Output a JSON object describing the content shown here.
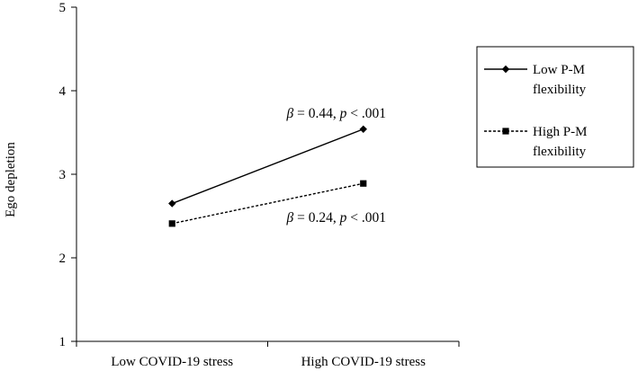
{
  "chart_data": {
    "type": "line",
    "title": "",
    "xlabel": "",
    "ylabel": "Ego depletion",
    "categories": [
      "Low COVID-19 stress",
      "High COVID-19 stress"
    ],
    "ylim": [
      1,
      5
    ],
    "yticks": [
      "1",
      "2",
      "3",
      "4",
      "5"
    ],
    "grid": false,
    "legend_position": "right",
    "series": [
      {
        "name": "Low P-M flexibility",
        "name_lines": [
          "Low P-M",
          "flexibility"
        ],
        "values": [
          2.65,
          3.54
        ],
        "line_style": "solid",
        "marker": "diamond",
        "color": "#000000"
      },
      {
        "name": "High P-M flexibility",
        "name_lines": [
          "High P-M",
          "flexibility"
        ],
        "values": [
          2.41,
          2.89
        ],
        "line_style": "dashed",
        "marker": "square",
        "color": "#000000"
      }
    ],
    "annotations": [
      {
        "series": 0,
        "beta_symbol": "β",
        "beta_rest": " = 0.44, ",
        "p_symbol": "p",
        "p_rest": " < .001"
      },
      {
        "series": 1,
        "beta_symbol": "β",
        "beta_rest": " = 0.24, ",
        "p_symbol": "p",
        "p_rest": " < .001"
      }
    ]
  }
}
